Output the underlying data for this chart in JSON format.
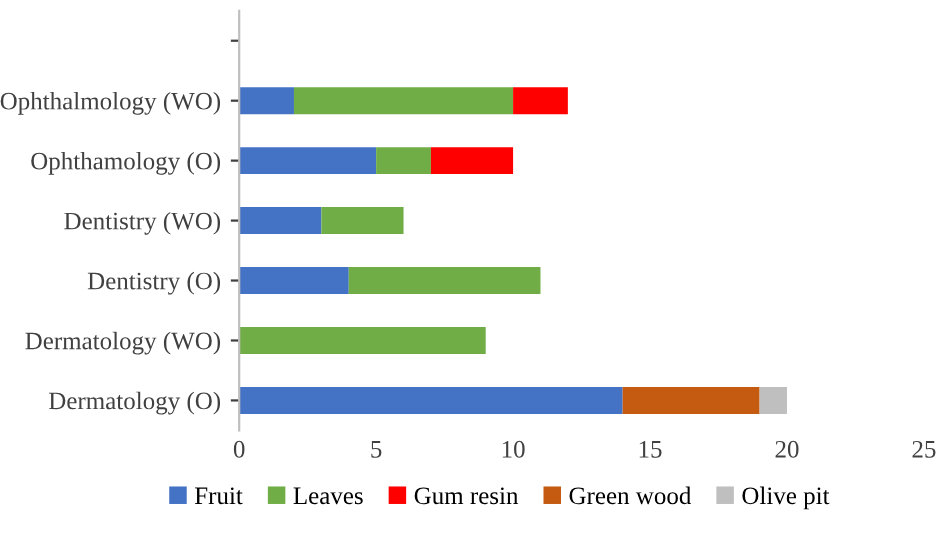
{
  "chart_data": {
    "type": "bar",
    "orientation": "horizontal",
    "stacked": true,
    "categories": [
      null,
      "Ophthalmology (WO)",
      "Ophthamology (O)",
      "Dentistry (WO)",
      "Dentistry (O)",
      "Dermatology (WO)",
      "Dermatology (O)"
    ],
    "series": [
      {
        "name": "Fruit",
        "color": "#4472c4",
        "values": [
          null,
          2,
          5,
          3,
          4,
          0,
          14
        ]
      },
      {
        "name": "Leaves",
        "color": "#70ad47",
        "values": [
          null,
          8,
          2,
          3,
          7,
          9,
          0
        ]
      },
      {
        "name": "Gum resin",
        "color": "#ff0000",
        "values": [
          null,
          2,
          3,
          0,
          0,
          0,
          0
        ]
      },
      {
        "name": "Green wood",
        "color": "#c55a11",
        "values": [
          null,
          0,
          0,
          0,
          0,
          0,
          5
        ]
      },
      {
        "name": "Olive pit",
        "color": "#bfbfbf",
        "values": [
          null,
          0,
          0,
          0,
          0,
          0,
          1
        ]
      }
    ],
    "xlim": [
      0,
      25
    ],
    "xticks": [
      0,
      5,
      10,
      15,
      20,
      25
    ],
    "grid": false,
    "legend": "bottom"
  }
}
